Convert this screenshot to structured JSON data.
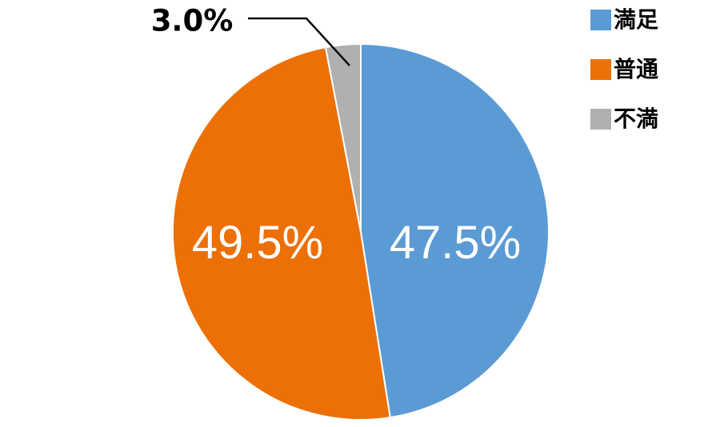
{
  "figure": {
    "background_color": "#FFFFFF",
    "title": ""
  },
  "chart_data": {
    "type": "pie",
    "title": "",
    "categories": [
      "満足",
      "普通",
      "不満"
    ],
    "values": [
      47.5,
      49.5,
      3.0
    ],
    "value_labels": [
      "47.5%",
      "49.5%",
      "3.0%"
    ],
    "colors": [
      "#5B9BD5",
      "#EC7005",
      "#B0B0B0"
    ],
    "start_angle_deg": 0,
    "direction": "clockwise",
    "slice_border_color": "#FFFFFF",
    "slice_label_color": "#FFFFFF",
    "callout": {
      "category": "不満",
      "text": "3.0%",
      "text_color": "#000000",
      "line_color": "#0D0D0D"
    },
    "legend_position": "top-right",
    "legend_text_color": "#000000"
  }
}
